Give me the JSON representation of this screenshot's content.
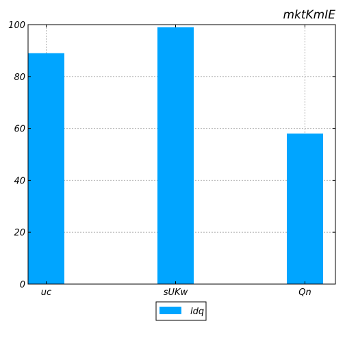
{
  "chart_data": {
    "type": "bar",
    "title": "mktKmIE",
    "categories": [
      "uc",
      "sUKw",
      "Qn"
    ],
    "series": [
      {
        "name": "ldq",
        "values": [
          89,
          99,
          58
        ],
        "color": "#00a5ff"
      }
    ],
    "yticks": [
      0,
      20,
      40,
      60,
      80,
      100
    ],
    "ylim": [
      0,
      100
    ],
    "grid": true,
    "legend_position": "bottom-center"
  }
}
